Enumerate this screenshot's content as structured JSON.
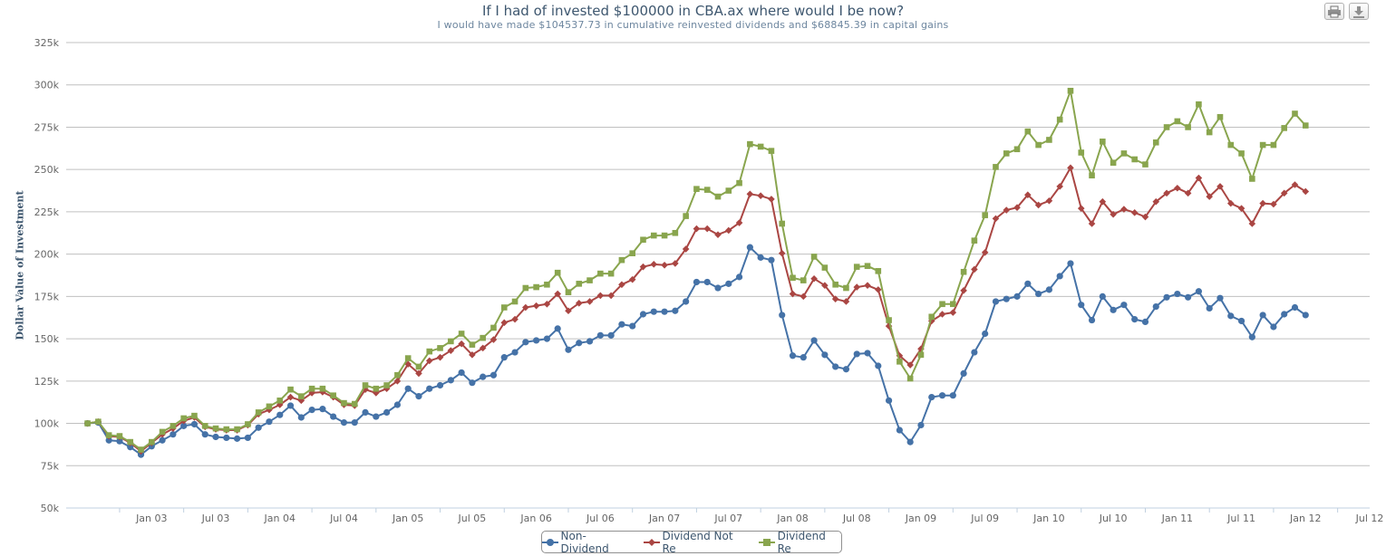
{
  "chart_data": {
    "type": "line",
    "title": "If I had of invested $100000 in CBA.ax where would I be now?",
    "subtitle": "I would have made $104537.73 in cumulative reinvested dividends and $68845.39 in capital gains",
    "ylabel": "Dollar Value of Investment",
    "xlabel": "",
    "ylim": [
      50000,
      325000
    ],
    "yticks": [
      50000,
      75000,
      100000,
      125000,
      150000,
      175000,
      200000,
      225000,
      250000,
      275000,
      300000,
      325000
    ],
    "ytick_labels": [
      "50k",
      "75k",
      "100k",
      "125k",
      "150k",
      "175k",
      "200k",
      "225k",
      "250k",
      "275k",
      "300k",
      "325k"
    ],
    "xticks": [
      "Jan 03",
      "Jul 03",
      "Jan 04",
      "Jul 04",
      "Jan 05",
      "Jul 05",
      "Jan 06",
      "Jul 06",
      "Jan 07",
      "Jul 07",
      "Jan 08",
      "Jul 08",
      "Jan 09",
      "Jul 09",
      "Jan 10",
      "Jul 10",
      "Jan 11",
      "Jul 11",
      "Jan 12",
      "Jul 12"
    ],
    "xrange": [
      "2002-05",
      "2012-07"
    ],
    "x_start": "2002-07",
    "grid": true,
    "legend_position": "bottom-center",
    "series": [
      {
        "name": "Non-Dividend",
        "color": "#4572a7",
        "marker": "circle",
        "values": [
          100000,
          100500,
          90000,
          89500,
          86000,
          81500,
          86500,
          90000,
          93500,
          98500,
          99500,
          93500,
          92000,
          91500,
          91000,
          91500,
          97500,
          101000,
          105000,
          110500,
          103500,
          108000,
          108500,
          104000,
          100500,
          100500,
          106500,
          104000,
          106500,
          111000,
          120500,
          116000,
          120500,
          122500,
          125500,
          130000,
          124000,
          127500,
          128500,
          139000,
          142000,
          148000,
          149000,
          150000,
          156000,
          143500,
          147500,
          148500,
          152000,
          152000,
          158500,
          157500,
          164500,
          166000,
          166000,
          166500,
          172000,
          183500,
          183500,
          180000,
          182500,
          186500,
          204000,
          198000,
          196500,
          164000,
          140000,
          139000,
          149000,
          140500,
          133500,
          132000,
          141000,
          141500,
          134000,
          113500,
          96000,
          89000,
          99000,
          115500,
          116500,
          116500,
          129500,
          142000,
          153000,
          172000,
          173500,
          175000,
          182500,
          176500,
          179000,
          187000,
          194500,
          170000,
          161000,
          175000,
          167000,
          170000,
          161500,
          160000,
          169000,
          174500,
          176500,
          174500,
          178000,
          168000,
          174000,
          163500,
          160500,
          151000,
          164000,
          157000,
          164500,
          168500,
          164000
        ]
      },
      {
        "name": "Dividend Not Re",
        "color": "#aa4643",
        "marker": "diamond",
        "values": [
          100000,
          101000,
          92500,
          92000,
          88500,
          83500,
          88500,
          93500,
          97000,
          101500,
          103500,
          98000,
          96500,
          96000,
          96000,
          99000,
          105500,
          108000,
          111000,
          115500,
          113500,
          118000,
          118500,
          115500,
          111000,
          110500,
          120000,
          118000,
          120500,
          125000,
          135000,
          129500,
          137000,
          139000,
          143000,
          147000,
          140500,
          144500,
          149500,
          159500,
          161500,
          168500,
          169500,
          170500,
          176500,
          166500,
          171000,
          172000,
          175500,
          175500,
          182000,
          185000,
          192500,
          194000,
          193500,
          194500,
          203000,
          215000,
          215000,
          211500,
          214000,
          218500,
          235500,
          234500,
          232500,
          200500,
          176500,
          175000,
          185500,
          181500,
          173500,
          172000,
          180500,
          181500,
          179000,
          157500,
          140000,
          134500,
          144000,
          160500,
          164500,
          165500,
          178500,
          191000,
          201000,
          221000,
          226000,
          227500,
          235000,
          229000,
          231500,
          240000,
          251000,
          227000,
          218000,
          231000,
          223500,
          226500,
          224500,
          222000,
          231000,
          236000,
          239000,
          236000,
          245000,
          234000,
          240000,
          230000,
          227000,
          218000,
          230000,
          229500,
          236000,
          241000,
          237000
        ]
      },
      {
        "name": "Dividend Re",
        "color": "#89a54e",
        "marker": "square",
        "values": [
          100000,
          101000,
          93000,
          92500,
          89000,
          84500,
          89000,
          95000,
          98500,
          103000,
          104500,
          98500,
          97000,
          96500,
          96500,
          99500,
          106500,
          110000,
          113500,
          120000,
          116000,
          120500,
          120500,
          116500,
          112000,
          111500,
          122500,
          120500,
          122500,
          128500,
          138500,
          133500,
          142500,
          144500,
          148500,
          153000,
          146500,
          150500,
          156500,
          168500,
          172000,
          180000,
          180500,
          182000,
          189000,
          177500,
          182500,
          184500,
          188500,
          188500,
          196500,
          200500,
          208500,
          211000,
          211000,
          212500,
          222500,
          238500,
          238000,
          234000,
          237500,
          242000,
          265000,
          263500,
          261000,
          218000,
          186000,
          184500,
          198500,
          192000,
          182000,
          180000,
          192500,
          193000,
          190000,
          161000,
          136500,
          126500,
          140500,
          163000,
          170500,
          170500,
          189500,
          208000,
          223000,
          251500,
          259500,
          262000,
          272500,
          264500,
          267500,
          279500,
          296500,
          260000,
          246500,
          266500,
          254000,
          259500,
          256000,
          253000,
          266000,
          275000,
          278500,
          275000,
          288500,
          272000,
          281000,
          264500,
          259500,
          244500,
          264500,
          264500,
          274500,
          283000,
          276000
        ]
      }
    ]
  },
  "toolbar": {
    "print_icon": "print-icon",
    "export_icon": "download-icon"
  }
}
